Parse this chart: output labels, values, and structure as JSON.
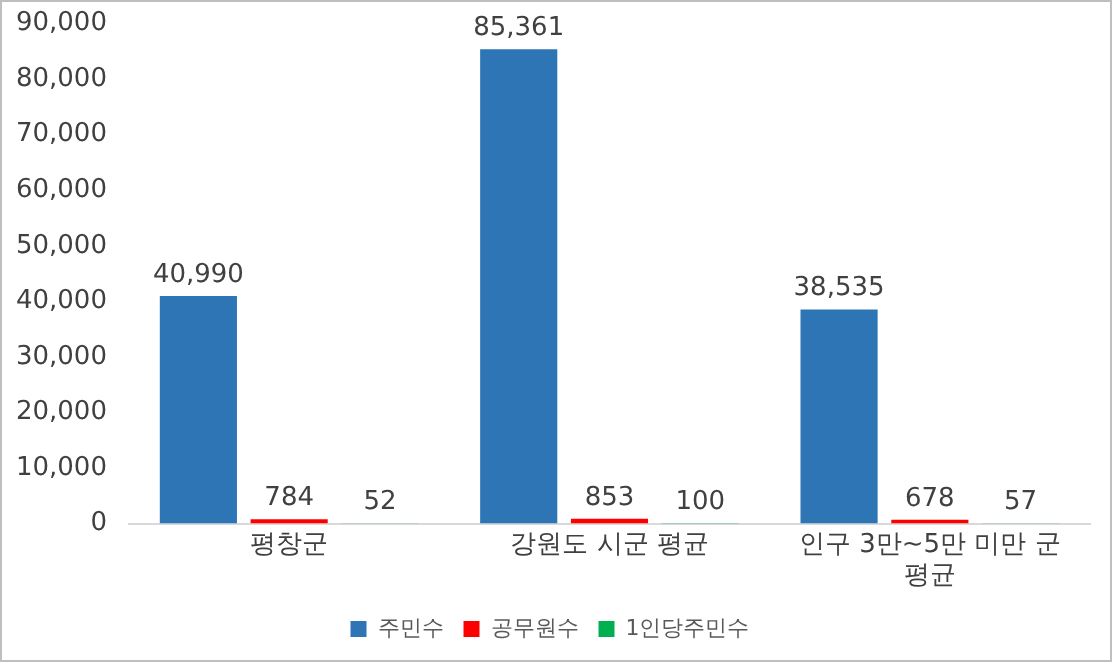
{
  "chart_data": {
    "type": "bar",
    "categories": [
      "평창군",
      "강원도 시군 평균",
      "인구 3만~5만 미만 군 평균"
    ],
    "series": [
      {
        "name": "주민수",
        "color": "#2e75b6",
        "values": [
          40990,
          85361,
          38535
        ],
        "value_labels": [
          "40,990",
          "85,361",
          "38,535"
        ]
      },
      {
        "name": "공무원수",
        "color": "#ff0000",
        "values": [
          784,
          853,
          678
        ],
        "value_labels": [
          "784",
          "853",
          "678"
        ]
      },
      {
        "name": "1인당주민수",
        "color": "#00b050",
        "values": [
          52,
          100,
          57
        ],
        "value_labels": [
          "52",
          "100",
          "57"
        ]
      }
    ],
    "ylim": [
      0,
      90000
    ],
    "yticks": [
      {
        "value": 0,
        "label": "0"
      },
      {
        "value": 10000,
        "label": "10,000"
      },
      {
        "value": 20000,
        "label": "20,000"
      },
      {
        "value": 30000,
        "label": "30,000"
      },
      {
        "value": 40000,
        "label": "40,000"
      },
      {
        "value": 50000,
        "label": "50,000"
      },
      {
        "value": 60000,
        "label": "60,000"
      },
      {
        "value": 70000,
        "label": "70,000"
      },
      {
        "value": 80000,
        "label": "80,000"
      },
      {
        "value": 90000,
        "label": "90,000"
      }
    ],
    "grid": false,
    "legend": "bottom"
  }
}
